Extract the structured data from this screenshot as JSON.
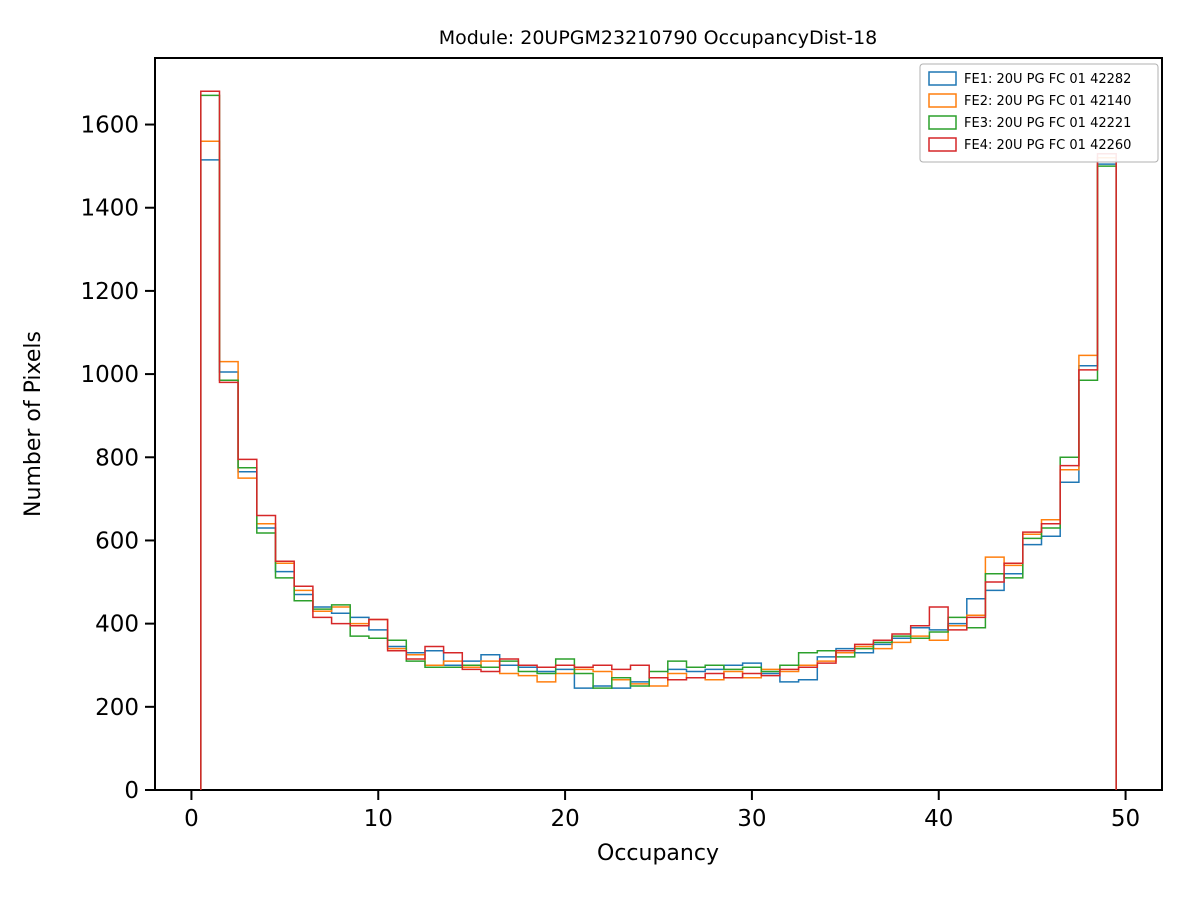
{
  "figure": {
    "title": "Module: 20UPGM23210790 OccupancyDist-18",
    "xlabel": "Occupancy",
    "ylabel": "Number of Pixels"
  },
  "chart_data": {
    "type": "step-histogram",
    "title": "Module: 20UPGM23210790 OccupancyDist-18",
    "xlabel": "Occupancy",
    "ylabel": "Number of Pixels",
    "xlim": [
      -1.95,
      51.95
    ],
    "ylim": [
      0,
      1760
    ],
    "xticks": [
      0,
      10,
      20,
      30,
      40,
      50
    ],
    "yticks": [
      0,
      200,
      400,
      600,
      800,
      1000,
      1200,
      1400,
      1600
    ],
    "grid": false,
    "legend_position": "upper right",
    "bin_start": 0.5,
    "bin_width": 1,
    "series": [
      {
        "name": "FE1: 20U PG FC 01 42282",
        "color": "#1f77b4",
        "values": [
          1515,
          1005,
          765,
          630,
          525,
          470,
          440,
          425,
          415,
          385,
          345,
          330,
          335,
          300,
          310,
          325,
          300,
          295,
          285,
          290,
          245,
          250,
          245,
          260,
          270,
          290,
          285,
          290,
          300,
          305,
          280,
          260,
          265,
          320,
          340,
          330,
          350,
          365,
          390,
          385,
          400,
          460,
          480,
          520,
          590,
          610,
          740,
          1020,
          1505
        ]
      },
      {
        "name": "FE2: 20U PG FC 01 42140",
        "color": "#ff7f0e",
        "values": [
          1560,
          1030,
          750,
          640,
          545,
          480,
          430,
          440,
          400,
          410,
          340,
          325,
          300,
          310,
          295,
          310,
          280,
          275,
          260,
          280,
          290,
          285,
          265,
          255,
          250,
          280,
          270,
          265,
          285,
          270,
          290,
          285,
          300,
          310,
          330,
          345,
          340,
          355,
          370,
          360,
          395,
          420,
          560,
          540,
          615,
          650,
          770,
          1045,
          1520
        ]
      },
      {
        "name": "FE3: 20U PG FC 01 42221",
        "color": "#2ca02c",
        "values": [
          1670,
          985,
          775,
          618,
          510,
          455,
          435,
          445,
          370,
          365,
          360,
          310,
          295,
          295,
          300,
          295,
          310,
          285,
          280,
          315,
          280,
          245,
          270,
          250,
          285,
          310,
          295,
          300,
          290,
          295,
          285,
          300,
          330,
          335,
          320,
          340,
          355,
          370,
          365,
          380,
          415,
          390,
          520,
          510,
          605,
          630,
          800,
          985,
          1500
        ]
      },
      {
        "name": "FE4: 20U PG FC 01 42260",
        "color": "#d62728",
        "values": [
          1680,
          980,
          795,
          660,
          550,
          490,
          415,
          400,
          395,
          410,
          335,
          315,
          345,
          330,
          290,
          285,
          315,
          300,
          295,
          300,
          295,
          300,
          290,
          300,
          270,
          265,
          270,
          280,
          270,
          280,
          275,
          290,
          295,
          305,
          335,
          350,
          360,
          375,
          395,
          440,
          385,
          415,
          500,
          545,
          620,
          640,
          780,
          1010,
          1530
        ]
      }
    ]
  }
}
